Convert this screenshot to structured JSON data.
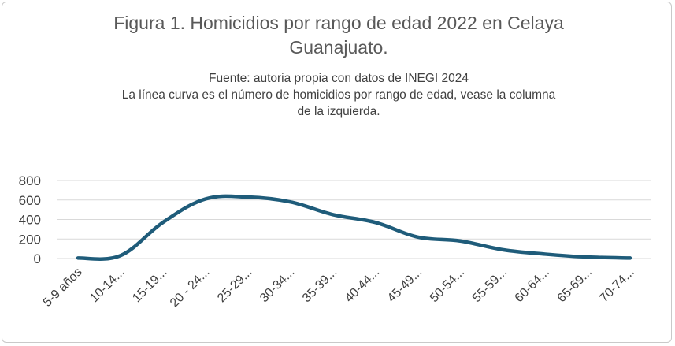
{
  "chart_data": {
    "type": "line",
    "title_lines": [
      "Figura 1. Homicidios por rango de edad 2022 en Celaya",
      "Guanajuato."
    ],
    "subtitle_lines": [
      "Fuente: autoria propia con datos de INEGI 2024",
      "La línea curva es el número de homicidios por rango de edad, vease la columna",
      "de la izquierda."
    ],
    "categories": [
      "5-9 años",
      "10-14...",
      "15-19...",
      "20 - 24...",
      "25-29...",
      "30-34...",
      "35-39...",
      "40-44...",
      "45-49...",
      "50-54...",
      "55-59...",
      "60-64...",
      "65-69...",
      "70-74..."
    ],
    "series": [
      {
        "values": [
          5,
          30,
          370,
          610,
          630,
          580,
          450,
          370,
          220,
          180,
          90,
          45,
          15,
          5
        ]
      }
    ],
    "ylim": [
      0,
      800
    ],
    "yticks": [
      0,
      200,
      400,
      600,
      800
    ],
    "grid": true,
    "line_color": "#1f5c7a"
  }
}
